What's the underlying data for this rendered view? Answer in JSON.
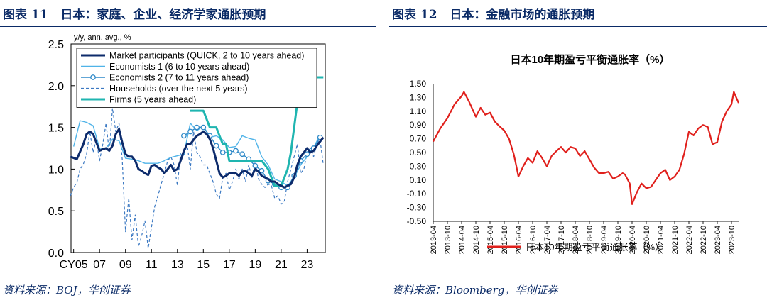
{
  "left": {
    "figure_title": "图表 11   日本：家庭、企业、经济学家通胀预期",
    "source": "资料来源：BOJ，华创证券"
  },
  "right": {
    "figure_title": "图表 12   日本：金融市场的通胀预期",
    "source": "资料来源：Bloomberg，华创证券"
  },
  "chart_data": [
    {
      "type": "line",
      "title": "",
      "ylabel": "y/y, ann. avg., %",
      "ylim": [
        0,
        2.5
      ],
      "yticks": [
        0.0,
        0.5,
        1.0,
        1.5,
        2.0,
        2.5
      ],
      "ytick_labels": [
        "0.0",
        "0.5",
        "1.0",
        "1.5",
        "2.0",
        "2.5"
      ],
      "xlim": [
        2004.8,
        2024.4
      ],
      "xticks": [
        2005,
        2007,
        2009,
        2011,
        2013,
        2015,
        2017,
        2019,
        2021,
        2023
      ],
      "xtick_labels": [
        "CY05",
        "07",
        "09",
        "11",
        "13",
        "15",
        "17",
        "19",
        "21",
        "23"
      ],
      "legend_position": "top-left",
      "series": [
        {
          "name": "Market participants (QUICK, 2 to 10 years ahead)",
          "color": "#0d2b6b",
          "style": "solid-thick",
          "x": [
            2004.75,
            2005.25,
            2005.75,
            2006.0,
            2006.25,
            2006.5,
            2006.75,
            2007.0,
            2007.25,
            2007.5,
            2007.75,
            2008.0,
            2008.25,
            2008.5,
            2008.75,
            2009.0,
            2009.25,
            2009.5,
            2009.75,
            2010.0,
            2010.25,
            2010.5,
            2010.75,
            2011.0,
            2011.25,
            2011.5,
            2011.75,
            2012.0,
            2012.25,
            2012.5,
            2012.75,
            2013.0,
            2013.25,
            2013.5,
            2013.75,
            2014.0,
            2014.25,
            2014.5,
            2014.75,
            2015.0,
            2015.25,
            2015.5,
            2015.75,
            2016.0,
            2016.25,
            2016.5,
            2016.75,
            2017.0,
            2017.25,
            2017.5,
            2017.75,
            2018.0,
            2018.25,
            2018.5,
            2018.75,
            2019.0,
            2019.25,
            2019.5,
            2019.75,
            2020.0,
            2020.25,
            2020.5,
            2020.75,
            2021.0,
            2021.25,
            2021.5,
            2021.75,
            2022.0,
            2022.25,
            2022.5,
            2022.75,
            2023.0,
            2023.25,
            2023.5,
            2023.75,
            2024.0,
            2024.25
          ],
          "values": [
            1.15,
            1.12,
            1.3,
            1.42,
            1.45,
            1.42,
            1.32,
            1.22,
            1.24,
            1.25,
            1.22,
            1.28,
            1.42,
            1.48,
            1.32,
            1.18,
            1.15,
            1.15,
            1.1,
            1.0,
            0.98,
            0.95,
            0.93,
            1.04,
            1.05,
            1.02,
            1.0,
            0.95,
            1.0,
            1.05,
            0.98,
            1.0,
            1.1,
            1.22,
            1.3,
            1.3,
            1.35,
            1.4,
            1.42,
            1.45,
            1.42,
            1.36,
            1.25,
            1.1,
            0.95,
            0.9,
            0.92,
            0.95,
            0.95,
            0.95,
            0.92,
            0.97,
            0.98,
            0.95,
            0.92,
            1.0,
            0.97,
            0.92,
            0.9,
            0.88,
            0.85,
            0.85,
            0.82,
            0.8,
            0.78,
            0.8,
            0.82,
            0.9,
            1.05,
            1.15,
            1.2,
            1.25,
            1.2,
            1.22,
            1.28,
            1.33,
            1.38
          ]
        },
        {
          "name": "Economists 1 (6 to 10 years ahead)",
          "color": "#4fb3e8",
          "style": "solid-thin",
          "x": [
            2005.0,
            2005.5,
            2006.0,
            2006.5,
            2007.0,
            2007.5,
            2008.0,
            2008.5,
            2009.0,
            2009.5,
            2010.0,
            2010.5,
            2011.0,
            2011.5,
            2012.0,
            2012.5,
            2013.0,
            2013.5,
            2014.0,
            2014.5,
            2015.0,
            2015.5,
            2016.0,
            2016.5,
            2017.0,
            2017.5,
            2018.0,
            2018.5,
            2019.0,
            2019.5,
            2020.0,
            2020.5,
            2021.0,
            2021.5,
            2022.0,
            2022.5,
            2023.0,
            2023.5,
            2024.0
          ],
          "values": [
            1.27,
            1.58,
            1.56,
            1.52,
            1.25,
            1.25,
            1.36,
            1.34,
            1.13,
            1.12,
            1.1,
            1.07,
            1.07,
            1.07,
            1.1,
            1.14,
            1.16,
            1.18,
            1.55,
            1.46,
            1.52,
            1.38,
            1.4,
            1.35,
            1.26,
            1.27,
            1.4,
            1.37,
            1.35,
            1.15,
            1.05,
            0.88,
            0.85,
            0.8,
            0.9,
            1.05,
            1.15,
            1.26,
            1.41
          ]
        },
        {
          "name": "Economists 2 (7 to 11 years ahead)",
          "color": "#2f89c8",
          "style": "solid-marker",
          "x": [
            2013.5,
            2014.0,
            2014.5,
            2015.0,
            2015.5,
            2016.0,
            2016.5,
            2017.0,
            2017.5,
            2018.0,
            2018.5,
            2019.0,
            2019.5,
            2020.0,
            2020.5,
            2021.0,
            2021.5,
            2022.0,
            2022.5,
            2023.0,
            2023.5,
            2024.0
          ],
          "values": [
            1.4,
            1.45,
            1.5,
            1.5,
            1.4,
            1.28,
            1.2,
            1.2,
            1.22,
            1.18,
            1.12,
            1.04,
            0.98,
            0.86,
            0.82,
            0.78,
            0.78,
            0.92,
            1.1,
            1.18,
            1.25,
            1.38
          ]
        },
        {
          "name": "Households (over the next 5 years)",
          "color": "#3a78c2",
          "style": "dashed",
          "x": [
            2004.75,
            2005.0,
            2005.25,
            2005.5,
            2005.75,
            2006.0,
            2006.25,
            2006.5,
            2006.75,
            2007.0,
            2007.25,
            2007.5,
            2007.75,
            2008.0,
            2008.25,
            2008.5,
            2008.75,
            2009.0,
            2009.25,
            2009.5,
            2009.75,
            2010.0,
            2010.25,
            2010.5,
            2010.75,
            2011.0,
            2011.25,
            2011.5,
            2011.75,
            2012.0,
            2012.25,
            2012.5,
            2012.75,
            2013.0,
            2013.25,
            2013.5,
            2013.75,
            2014.0,
            2014.25,
            2014.5,
            2014.75,
            2015.0,
            2015.25,
            2015.5,
            2015.75,
            2016.0,
            2016.25,
            2016.5,
            2016.75,
            2017.0,
            2017.25,
            2017.5,
            2017.75,
            2018.0,
            2018.25,
            2018.5,
            2018.75,
            2019.0,
            2019.25,
            2019.5,
            2019.75,
            2020.0,
            2020.25,
            2020.5,
            2020.75,
            2021.0,
            2021.25,
            2021.5,
            2021.75,
            2022.0,
            2022.25,
            2022.5,
            2022.75,
            2023.0,
            2023.25,
            2023.5,
            2023.75,
            2024.0,
            2024.25
          ],
          "values": [
            0.68,
            0.78,
            0.84,
            1.0,
            1.06,
            1.18,
            1.45,
            1.2,
            1.36,
            1.1,
            1.3,
            1.55,
            1.2,
            1.73,
            1.45,
            1.55,
            1.12,
            0.25,
            0.65,
            0.15,
            0.45,
            0.07,
            0.2,
            0.38,
            0.05,
            0.3,
            0.55,
            0.68,
            0.82,
            0.95,
            1.1,
            1.15,
            1.05,
            0.8,
            1.2,
            1.15,
            1.3,
            1.0,
            1.45,
            1.2,
            1.15,
            1.05,
            1.05,
            0.95,
            0.85,
            0.7,
            0.65,
            0.9,
            0.95,
            0.75,
            0.85,
            1.0,
            0.88,
            1.0,
            0.85,
            1.05,
            0.9,
            1.1,
            0.88,
            0.82,
            0.78,
            0.82,
            0.8,
            0.65,
            0.68,
            0.58,
            0.62,
            0.85,
            1.0,
            1.15,
            1.3,
            0.95,
            1.0,
            1.2,
            1.25,
            1.15,
            1.3,
            1.35,
            1.05
          ]
        },
        {
          "name": "Firms (5 years ahead)",
          "color": "#1fb5b0",
          "style": "solid-thick",
          "x": [
            2014.0,
            2014.75,
            2015.0,
            2015.25,
            2015.5,
            2015.75,
            2016.0,
            2016.25,
            2016.5,
            2016.75,
            2017.0,
            2017.5,
            2018.0,
            2018.5,
            2019.0,
            2019.5,
            2020.0,
            2020.25,
            2020.5,
            2020.75,
            2021.0,
            2021.25,
            2021.5,
            2021.75,
            2022.0,
            2022.25,
            2022.5,
            2022.75,
            2023.0,
            2023.25,
            2023.5,
            2023.75,
            2024.0,
            2024.25
          ],
          "values": [
            1.7,
            1.7,
            1.7,
            1.6,
            1.5,
            1.5,
            1.5,
            1.4,
            1.3,
            1.3,
            1.1,
            1.1,
            1.1,
            1.1,
            1.1,
            1.1,
            1.0,
            0.9,
            0.8,
            0.8,
            0.8,
            0.9,
            1.0,
            1.2,
            1.5,
            1.8,
            1.95,
            2.0,
            2.0,
            2.05,
            2.1,
            2.1,
            2.1,
            2.1
          ]
        }
      ]
    },
    {
      "type": "line",
      "title": "日本10年期盈亏平衡通胀率（%）",
      "ylim": [
        -0.5,
        1.5
      ],
      "yticks": [
        -0.5,
        -0.3,
        -0.1,
        0.1,
        0.3,
        0.5,
        0.7,
        0.9,
        1.1,
        1.3,
        1.5
      ],
      "ytick_labels": [
        "-0.50",
        "-0.30",
        "-0.10",
        "0.10",
        "0.30",
        "0.50",
        "0.70",
        "0.90",
        "1.10",
        "1.30",
        "1.50"
      ],
      "xtick_labels": [
        "2013-04",
        "2013-10",
        "2014-04",
        "2014-10",
        "2015-04",
        "2015-10",
        "2016-04",
        "2016-10",
        "2017-04",
        "2017-10",
        "2018-04",
        "2018-10",
        "2019-04",
        "2019-10",
        "2020-04",
        "2020-10",
        "2021-04",
        "2021-10",
        "2022-04",
        "2022-10",
        "2023-04",
        "2023-10"
      ],
      "legend_position": "bottom",
      "series": [
        {
          "name": "日本10年期盈亏平衡通胀率（%）",
          "color": "#e0201c",
          "x": [
            "2013-04",
            "2013-07",
            "2013-10",
            "2014-01",
            "2014-04",
            "2014-05",
            "2014-07",
            "2014-10",
            "2014-12",
            "2015-02",
            "2015-04",
            "2015-06",
            "2015-08",
            "2015-10",
            "2015-12",
            "2016-02",
            "2016-03",
            "2016-04",
            "2016-06",
            "2016-08",
            "2016-10",
            "2016-12",
            "2017-02",
            "2017-04",
            "2017-06",
            "2017-08",
            "2017-10",
            "2017-12",
            "2018-02",
            "2018-04",
            "2018-06",
            "2018-08",
            "2018-10",
            "2018-12",
            "2019-02",
            "2019-04",
            "2019-06",
            "2019-08",
            "2019-10",
            "2019-12",
            "2020-01",
            "2020-03",
            "2020-04",
            "2020-06",
            "2020-08",
            "2020-10",
            "2020-12",
            "2021-02",
            "2021-04",
            "2021-06",
            "2021-08",
            "2021-10",
            "2021-12",
            "2022-02",
            "2022-04",
            "2022-06",
            "2022-08",
            "2022-10",
            "2022-12",
            "2023-02",
            "2023-04",
            "2023-06",
            "2023-08",
            "2023-10",
            "2023-11",
            "2023-12",
            "2024-01"
          ],
          "values": [
            0.66,
            0.85,
            1.0,
            1.2,
            1.32,
            1.38,
            1.25,
            1.02,
            1.15,
            1.05,
            1.08,
            0.95,
            0.88,
            0.82,
            0.7,
            0.48,
            0.32,
            0.15,
            0.3,
            0.42,
            0.35,
            0.52,
            0.42,
            0.3,
            0.45,
            0.52,
            0.58,
            0.5,
            0.58,
            0.56,
            0.45,
            0.52,
            0.4,
            0.28,
            0.2,
            0.2,
            0.22,
            0.12,
            0.15,
            0.2,
            0.18,
            0.05,
            -0.25,
            -0.08,
            0.05,
            -0.02,
            0.0,
            0.1,
            0.2,
            0.25,
            0.1,
            0.15,
            0.25,
            0.48,
            0.8,
            0.75,
            0.85,
            0.9,
            0.87,
            0.62,
            0.65,
            0.95,
            1.1,
            1.2,
            1.38,
            1.3,
            1.22
          ]
        }
      ]
    }
  ]
}
